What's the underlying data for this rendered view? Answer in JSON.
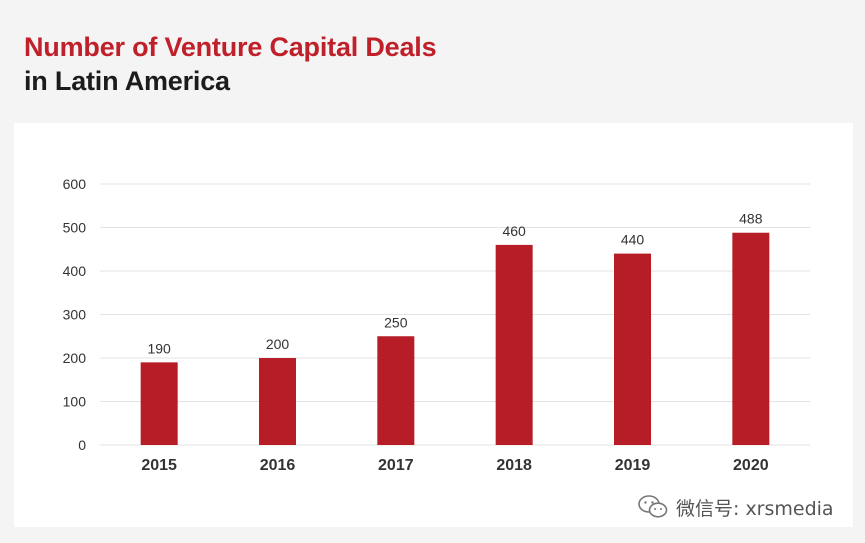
{
  "title": {
    "line1": "Number of Venture Capital Deals",
    "line2": "in Latin America"
  },
  "colors": {
    "title_accent": "#c0202a",
    "bar": "#b61d27",
    "grid": "#e3e3e3",
    "text": "#333333"
  },
  "watermark": {
    "icon": "wechat-icon",
    "text": "微信号: xrsmedia"
  },
  "chart_data": {
    "type": "bar",
    "categories": [
      "2015",
      "2016",
      "2017",
      "2018",
      "2019",
      "2020"
    ],
    "values": [
      190,
      200,
      250,
      460,
      440,
      488
    ],
    "data_labels": [
      "190",
      "200",
      "250",
      "460",
      "440",
      "488"
    ],
    "ylim": [
      0,
      600
    ],
    "yticks": [
      0,
      100,
      200,
      300,
      400,
      500,
      600
    ],
    "grid": true,
    "legend": "none",
    "title": "Number of Venture Capital Deals in Latin America"
  }
}
